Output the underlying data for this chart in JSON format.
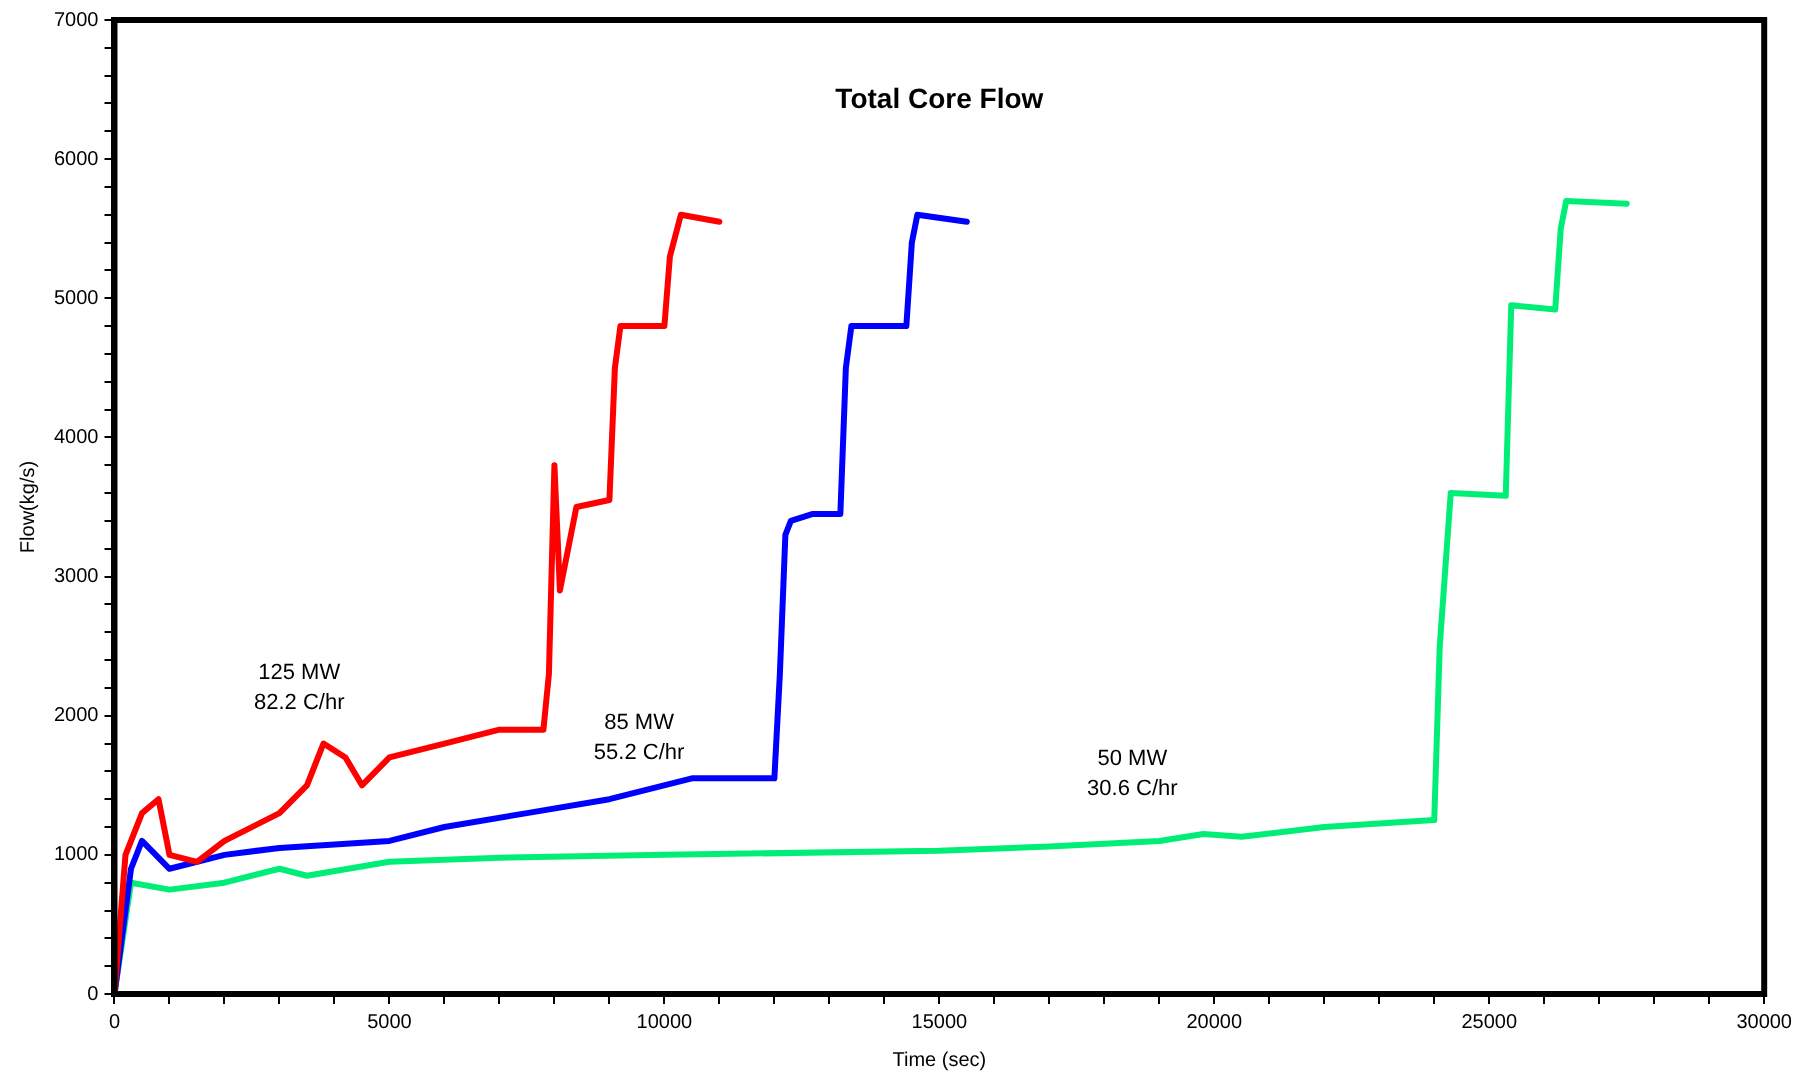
{
  "chart_data": {
    "type": "line",
    "title": "Total Core Flow",
    "xlabel": "Time (sec)",
    "ylabel": "Flow(kg/s)",
    "xlim": [
      0,
      30000
    ],
    "ylim": [
      0,
      7000
    ],
    "xticks": [
      0,
      {
        "value": 1000,
        "label": null
      },
      {
        "value": 2000,
        "label": null
      },
      {
        "value": 3000,
        "label": null
      },
      {
        "value": 4000,
        "label": null
      },
      5000,
      {
        "value": 6000,
        "label": null
      },
      {
        "value": 7000,
        "label": null
      },
      {
        "value": 8000,
        "label": null
      },
      {
        "value": 9000,
        "label": null
      },
      10000,
      {
        "value": 11000,
        "label": null
      },
      {
        "value": 12000,
        "label": null
      },
      {
        "value": 13000,
        "label": null
      },
      {
        "value": 14000,
        "label": null
      },
      15000,
      {
        "value": 16000,
        "label": null
      },
      {
        "value": 17000,
        "label": null
      },
      {
        "value": 18000,
        "label": null
      },
      {
        "value": 19000,
        "label": null
      },
      20000,
      {
        "value": 21000,
        "label": null
      },
      {
        "value": 22000,
        "label": null
      },
      {
        "value": 23000,
        "label": null
      },
      {
        "value": 24000,
        "label": null
      },
      25000,
      {
        "value": 26000,
        "label": null
      },
      {
        "value": 27000,
        "label": null
      },
      {
        "value": 28000,
        "label": null
      },
      {
        "value": 29000,
        "label": null
      },
      30000
    ],
    "yticks": [
      0,
      {
        "value": 200,
        "label": null
      },
      {
        "value": 400,
        "label": null
      },
      {
        "value": 600,
        "label": null
      },
      {
        "value": 800,
        "label": null
      },
      1000,
      {
        "value": 1200,
        "label": null
      },
      {
        "value": 1400,
        "label": null
      },
      {
        "value": 1600,
        "label": null
      },
      {
        "value": 1800,
        "label": null
      },
      2000,
      {
        "value": 2200,
        "label": null
      },
      {
        "value": 2400,
        "label": null
      },
      {
        "value": 2600,
        "label": null
      },
      {
        "value": 2800,
        "label": null
      },
      3000,
      {
        "value": 3200,
        "label": null
      },
      {
        "value": 3400,
        "label": null
      },
      {
        "value": 3600,
        "label": null
      },
      {
        "value": 3800,
        "label": null
      },
      4000,
      {
        "value": 4200,
        "label": null
      },
      {
        "value": 4400,
        "label": null
      },
      {
        "value": 4600,
        "label": null
      },
      {
        "value": 4800,
        "label": null
      },
      5000,
      {
        "value": 5200,
        "label": null
      },
      {
        "value": 5400,
        "label": null
      },
      {
        "value": 5600,
        "label": null
      },
      {
        "value": 5800,
        "label": null
      },
      6000,
      {
        "value": 6200,
        "label": null
      },
      {
        "value": 6400,
        "label": null
      },
      {
        "value": 6600,
        "label": null
      },
      {
        "value": 6800,
        "label": null
      },
      7000
    ],
    "grid": false,
    "legend": false,
    "marker": "none",
    "line_style": "solid",
    "series": [
      {
        "color": "#ff0000",
        "x": [
          0,
          200,
          400,
          500,
          800,
          1000,
          1500,
          2000,
          3000,
          3500,
          3800,
          4200,
          4500,
          5000,
          6000,
          7000,
          7800,
          7900,
          8000,
          8100,
          8400,
          9000,
          9100,
          9200,
          10000,
          10100,
          10300,
          11000
        ],
        "values": [
          0,
          1000,
          1200,
          1300,
          1400,
          1000,
          950,
          1100,
          1300,
          1500,
          1800,
          1700,
          1500,
          1700,
          1800,
          1900,
          1900,
          2300,
          3800,
          2900,
          3500,
          3550,
          4500,
          4800,
          4800,
          5300,
          5600,
          5550
        ]
      },
      {
        "color": "#0000ff",
        "x": [
          0,
          300,
          500,
          1000,
          2000,
          3000,
          5000,
          6000,
          7500,
          9000,
          10500,
          12000,
          12100,
          12200,
          12300,
          12700,
          13200,
          13300,
          13400,
          14400,
          14500,
          14600,
          15500
        ],
        "values": [
          0,
          900,
          1100,
          900,
          1000,
          1050,
          1100,
          1200,
          1300,
          1400,
          1550,
          1550,
          2300,
          3300,
          3400,
          3450,
          3450,
          4500,
          4800,
          4800,
          5400,
          5600,
          5550
        ]
      },
      {
        "color": "#00ee77",
        "x": [
          0,
          300,
          1000,
          2000,
          3000,
          3500,
          5000,
          7000,
          10000,
          15000,
          17000,
          19000,
          19800,
          20500,
          22000,
          24000,
          24100,
          24300,
          25300,
          25400,
          26200,
          26300,
          26400,
          27500
        ],
        "values": [
          0,
          800,
          750,
          800,
          900,
          850,
          950,
          980,
          1000,
          1030,
          1060,
          1100,
          1150,
          1130,
          1200,
          1250,
          2500,
          3600,
          3580,
          4950,
          4920,
          5500,
          5700,
          5680
        ]
      }
    ],
    "annotations": [
      "125 MW\n82.2 C/hr",
      "85 MW\n55.2 C/hr",
      "50 MW\n30.6 C/hr"
    ]
  }
}
